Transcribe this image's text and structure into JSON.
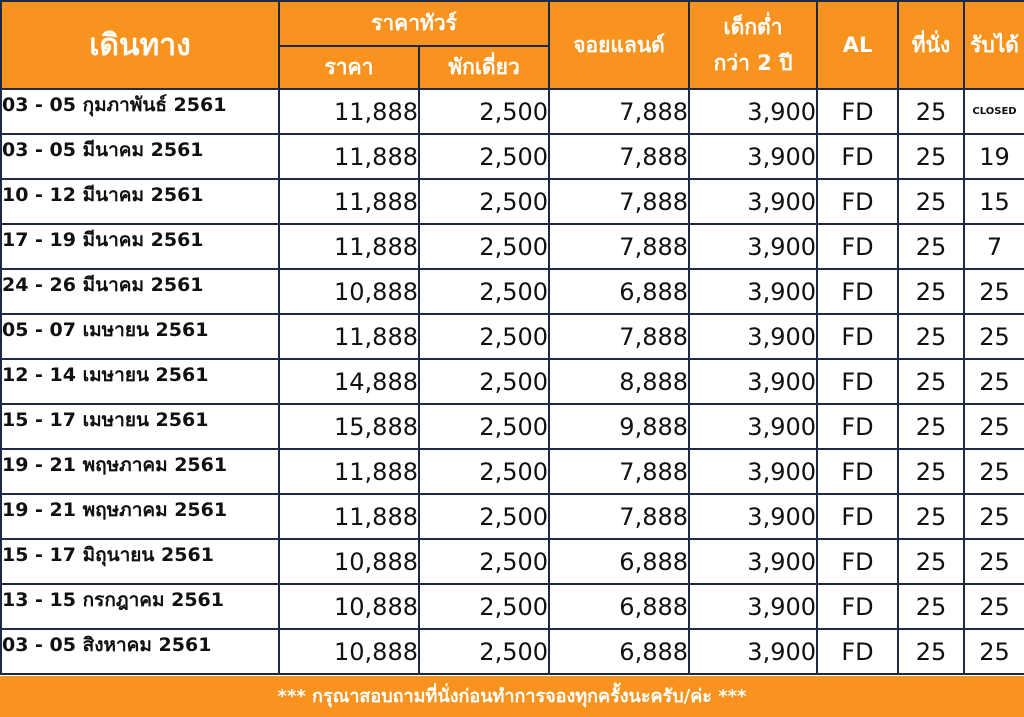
{
  "header": {
    "travel": "เดินทาง",
    "tour_price": "ราคาทัวร์",
    "price": "ราคา",
    "single": "พักเดี่ยว",
    "join_land": "จอยแลนด์",
    "child_line1": "เด็กต่ำ",
    "child_line2": "กว่า 2 ปี",
    "airline": "AL",
    "seats": "ที่นั่ง",
    "available": "รับได้"
  },
  "rows": [
    {
      "date": "03 - 05 กุมภาพันธ์ 2561",
      "price": "11,888",
      "single": "2,500",
      "join": "7,888",
      "child": "3,900",
      "al": "FD",
      "seats": "25",
      "avail": "CLOSED"
    },
    {
      "date": "03 - 05 มีนาคม 2561",
      "price": "11,888",
      "single": "2,500",
      "join": "7,888",
      "child": "3,900",
      "al": "FD",
      "seats": "25",
      "avail": "19"
    },
    {
      "date": "10 - 12 มีนาคม 2561",
      "price": "11,888",
      "single": "2,500",
      "join": "7,888",
      "child": "3,900",
      "al": "FD",
      "seats": "25",
      "avail": "15"
    },
    {
      "date": "17 - 19 มีนาคม 2561",
      "price": "11,888",
      "single": "2,500",
      "join": "7,888",
      "child": "3,900",
      "al": "FD",
      "seats": "25",
      "avail": "7"
    },
    {
      "date": "24 - 26 มีนาคม 2561",
      "price": "10,888",
      "single": "2,500",
      "join": "6,888",
      "child": "3,900",
      "al": "FD",
      "seats": "25",
      "avail": "25"
    },
    {
      "date": "05 - 07 เมษายน 2561",
      "price": "11,888",
      "single": "2,500",
      "join": "7,888",
      "child": "3,900",
      "al": "FD",
      "seats": "25",
      "avail": "25"
    },
    {
      "date": "12 - 14 เมษายน 2561",
      "price": "14,888",
      "single": "2,500",
      "join": "8,888",
      "child": "3,900",
      "al": "FD",
      "seats": "25",
      "avail": "25"
    },
    {
      "date": "15 - 17 เมษายน 2561",
      "price": "15,888",
      "single": "2,500",
      "join": "9,888",
      "child": "3,900",
      "al": "FD",
      "seats": "25",
      "avail": "25"
    },
    {
      "date": "19 - 21 พฤษภาคม 2561",
      "price": "11,888",
      "single": "2,500",
      "join": "7,888",
      "child": "3,900",
      "al": "FD",
      "seats": "25",
      "avail": "25"
    },
    {
      "date": "19 - 21 พฤษภาคม 2561",
      "price": "11,888",
      "single": "2,500",
      "join": "7,888",
      "child": "3,900",
      "al": "FD",
      "seats": "25",
      "avail": "25"
    },
    {
      "date": "15 - 17 มิถุนายน 2561",
      "price": "10,888",
      "single": "2,500",
      "join": "6,888",
      "child": "3,900",
      "al": "FD",
      "seats": "25",
      "avail": "25"
    },
    {
      "date": "13 - 15 กรกฎาคม 2561",
      "price": "10,888",
      "single": "2,500",
      "join": "6,888",
      "child": "3,900",
      "al": "FD",
      "seats": "25",
      "avail": "25"
    },
    {
      "date": "03 - 05 สิงหาคม 2561",
      "price": "10,888",
      "single": "2,500",
      "join": "6,888",
      "child": "3,900",
      "al": "FD",
      "seats": "25",
      "avail": "25"
    }
  ],
  "footer": "*** กรุณาสอบถามที่นั่งก่อนทำการจองทุกครั้งนะครับ/ค่ะ ***",
  "colors": {
    "header_bg": "#f7931e",
    "border": "#1e2a44",
    "header_text": "#ffffff"
  }
}
